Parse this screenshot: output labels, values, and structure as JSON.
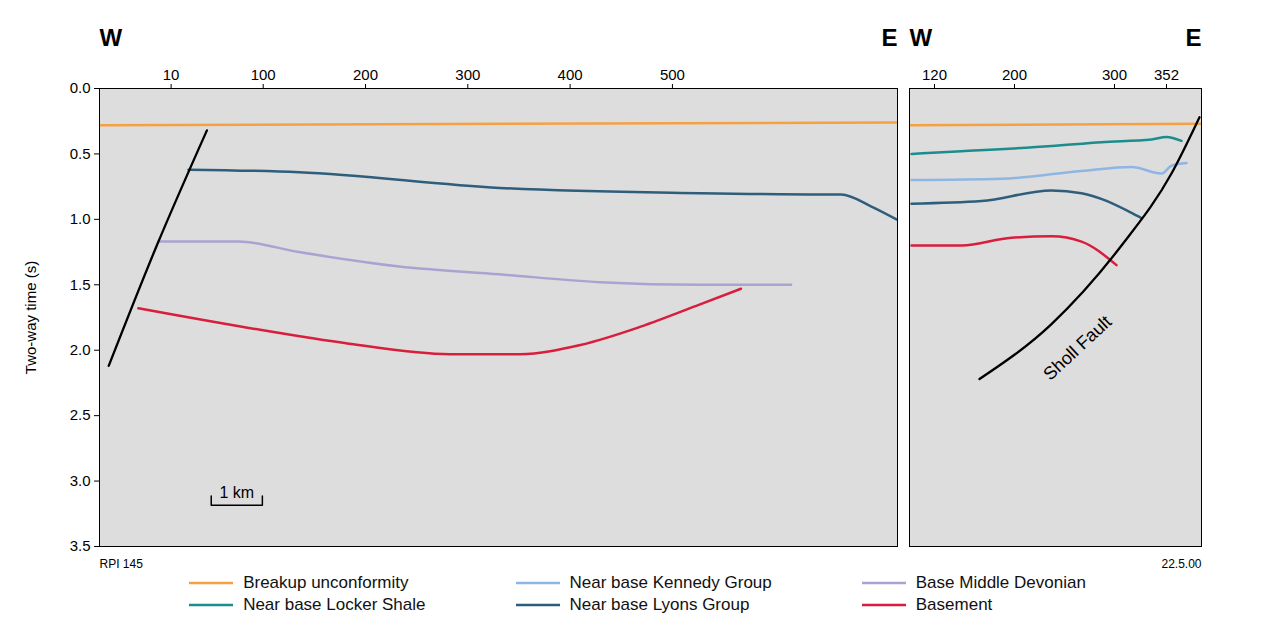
{
  "chart_data": {
    "type": "line",
    "ylabel": "Two-way time (s)",
    "ylim": [
      3.5,
      0
    ],
    "yticks": [
      {
        "value": 0,
        "label": "0.0"
      },
      0.5,
      {
        "value": 1,
        "label": "1.0"
      },
      1.5,
      {
        "value": 2,
        "label": "2.0"
      },
      2.5,
      {
        "value": 3,
        "label": "3.0"
      },
      3.5
    ],
    "legend": "bottom",
    "series": [
      {
        "name": "Breakup unconformity",
        "color": "#f5a142"
      },
      {
        "name": "Near base Locker Shale",
        "color": "#1c8c8c"
      },
      {
        "name": "Near base Kennedy Group",
        "color": "#8fb5e3"
      },
      {
        "name": "Near base Lyons Group",
        "color": "#2f5d7c"
      },
      {
        "name": "Base Middle Devonian",
        "color": "#aaa3d2"
      },
      {
        "name": "Basement",
        "color": "#d81e3c"
      }
    ],
    "panels": [
      {
        "direction_labels": [
          "W",
          "E"
        ],
        "xlim": [
          -60,
          720
        ],
        "xticks": [
          10,
          100,
          200,
          300,
          400,
          500
        ],
        "footnote": "RPI 145",
        "scale_bar": {
          "label": "1 km",
          "length": 50
        },
        "lines": [
          {
            "name": "Breakup unconformity",
            "x": [
              -60,
              720
            ],
            "y": [
              0.28,
              0.26
            ]
          },
          {
            "name": "Near base Lyons Group",
            "x": [
              27,
              135,
              331,
              527,
              645,
              665,
              694,
              719
            ],
            "y": [
              0.62,
              0.64,
              0.76,
              0.8,
              0.81,
              0.81,
              0.9,
              1.0
            ]
          },
          {
            "name": "Base Middle Devonian",
            "x": [
              -2,
              76,
              135,
              233,
              331,
              429,
              527,
              616
            ],
            "y": [
              1.17,
              1.17,
              1.25,
              1.36,
              1.42,
              1.48,
              1.5,
              1.5
            ]
          },
          {
            "name": "Basement",
            "x": [
              -22,
              86,
              184,
              282,
              351,
              410,
              469,
              527,
              567
            ],
            "y": [
              1.68,
              1.83,
              1.95,
              2.03,
              2.03,
              1.96,
              1.82,
              1.65,
              1.53
            ]
          }
        ],
        "faults": [
          {
            "color": "#000000",
            "x": [
              -51,
              -4,
              45
            ],
            "y": [
              2.12,
              1.2,
              0.32
            ]
          }
        ]
      },
      {
        "direction_labels": [
          "W",
          "E"
        ],
        "xlim": [
          95,
          387
        ],
        "xticks": [
          120,
          200,
          300,
          352
        ],
        "footnote": "22.5.00",
        "lines": [
          {
            "name": "Breakup unconformity",
            "x": [
              95,
              387
            ],
            "y": [
              0.28,
              0.27
            ]
          },
          {
            "name": "Near base Locker Shale",
            "x": [
              97,
              147,
              237,
              287,
              337,
              352,
              367
            ],
            "y": [
              0.5,
              0.48,
              0.44,
              0.41,
              0.39,
              0.37,
              0.4
            ]
          },
          {
            "name": "Near base Kennedy Group",
            "x": [
              97,
              187,
              267,
              317,
              347,
              357,
              372
            ],
            "y": [
              0.7,
              0.69,
              0.63,
              0.6,
              0.65,
              0.59,
              0.57
            ]
          },
          {
            "name": "Near base Lyons Group",
            "x": [
              97,
              167,
              237,
              267,
              317,
              327
            ],
            "y": [
              0.88,
              0.86,
              0.78,
              0.8,
              0.95,
              0.99
            ]
          },
          {
            "name": "Basement",
            "x": [
              97,
              147,
              197,
              237,
              267,
              302
            ],
            "y": [
              1.2,
              1.2,
              1.14,
              1.13,
              1.17,
              1.35
            ]
          }
        ],
        "faults": [
          {
            "label": "Sholl Fault",
            "color": "#000000",
            "x": [
              165,
              237,
              307,
              357,
              385
            ],
            "y": [
              2.22,
              1.8,
              1.2,
              0.65,
              0.22
            ]
          }
        ]
      }
    ]
  }
}
